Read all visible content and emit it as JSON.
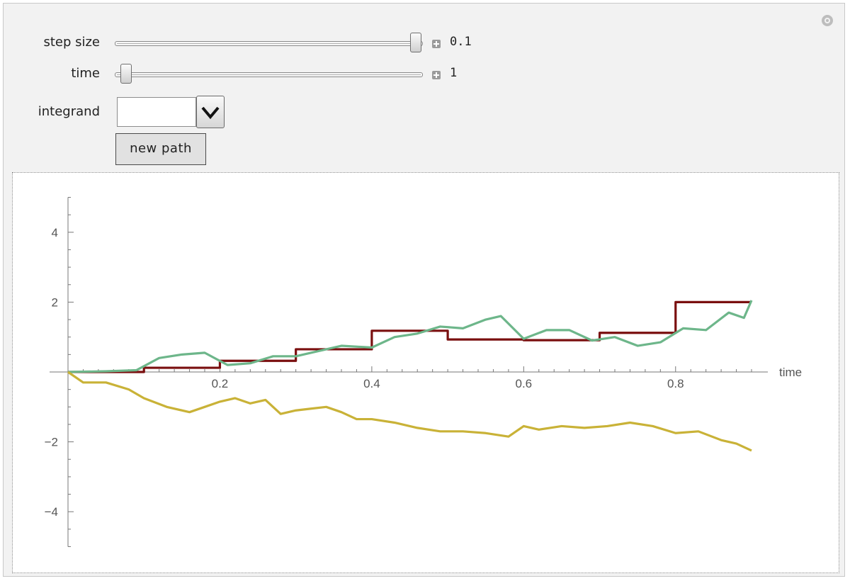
{
  "controls": {
    "step_size": {
      "label": "step size",
      "value": "0.1",
      "fraction": 1.0
    },
    "time": {
      "label": "time",
      "value": "1",
      "fraction": 0.0
    },
    "integrand": {
      "label": "integrand",
      "value": ""
    },
    "new_path_label": "new path"
  },
  "icons": {
    "gear": "gear-icon",
    "plus": "plus-icon",
    "dropdown": "chevron-down-icon"
  },
  "chart_data": {
    "type": "line",
    "xlabel": "time",
    "ylabel": "",
    "xlim": [
      0,
      0.9
    ],
    "ylim": [
      -5,
      5
    ],
    "x_ticks": [
      "0.2",
      "0.4",
      "0.6",
      "0.8"
    ],
    "y_ticks": [
      "4",
      "2",
      "−2",
      "−4"
    ],
    "series": [
      {
        "kind": "step",
        "color": "#7a0f0f",
        "x": [
          0,
          0.1,
          0.2,
          0.3,
          0.4,
          0.5,
          0.6,
          0.7,
          0.8,
          0.9
        ],
        "y": [
          0,
          0.12,
          0.32,
          0.65,
          1.18,
          0.93,
          0.91,
          1.12,
          2.0,
          2.0
        ]
      },
      {
        "kind": "line",
        "color": "#6db68a",
        "x": [
          0,
          0.05,
          0.09,
          0.12,
          0.15,
          0.18,
          0.21,
          0.24,
          0.27,
          0.3,
          0.33,
          0.36,
          0.4,
          0.43,
          0.46,
          0.49,
          0.52,
          0.55,
          0.57,
          0.6,
          0.63,
          0.66,
          0.69,
          0.72,
          0.75,
          0.78,
          0.81,
          0.84,
          0.87,
          0.89,
          0.9
        ],
        "y": [
          0,
          0.02,
          0.05,
          0.4,
          0.5,
          0.55,
          0.2,
          0.25,
          0.45,
          0.45,
          0.6,
          0.75,
          0.7,
          1.0,
          1.1,
          1.3,
          1.25,
          1.5,
          1.6,
          0.95,
          1.2,
          1.2,
          0.9,
          1.0,
          0.75,
          0.85,
          1.25,
          1.2,
          1.7,
          1.55,
          2.05
        ]
      },
      {
        "kind": "line",
        "color": "#c9b237",
        "x": [
          0,
          0.02,
          0.05,
          0.08,
          0.1,
          0.13,
          0.16,
          0.18,
          0.2,
          0.22,
          0.24,
          0.26,
          0.28,
          0.3,
          0.32,
          0.34,
          0.36,
          0.38,
          0.4,
          0.43,
          0.46,
          0.49,
          0.52,
          0.55,
          0.58,
          0.6,
          0.62,
          0.65,
          0.68,
          0.71,
          0.74,
          0.77,
          0.8,
          0.83,
          0.86,
          0.88,
          0.9
        ],
        "y": [
          0,
          -0.3,
          -0.3,
          -0.5,
          -0.75,
          -1.0,
          -1.15,
          -1.0,
          -0.85,
          -0.75,
          -0.9,
          -0.8,
          -1.2,
          -1.1,
          -1.05,
          -1.0,
          -1.15,
          -1.35,
          -1.35,
          -1.45,
          -1.6,
          -1.7,
          -1.7,
          -1.75,
          -1.85,
          -1.55,
          -1.65,
          -1.55,
          -1.6,
          -1.55,
          -1.45,
          -1.55,
          -1.75,
          -1.7,
          -1.95,
          -2.05,
          -2.25
        ]
      }
    ]
  }
}
